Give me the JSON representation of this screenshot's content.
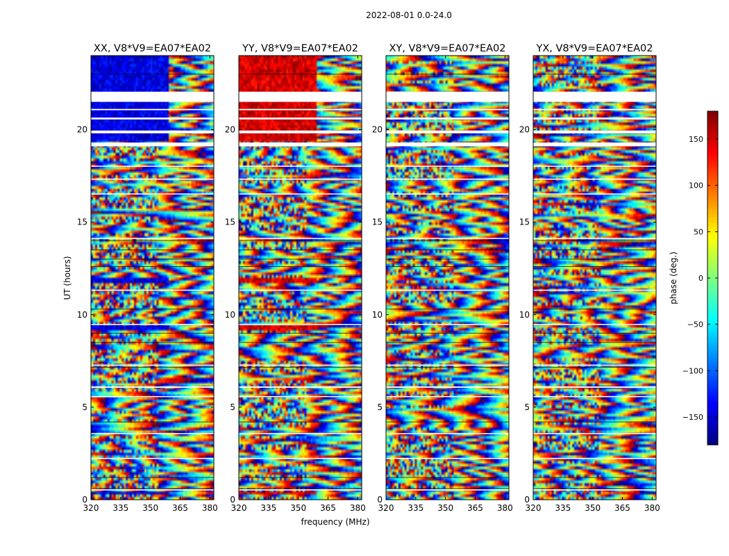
{
  "figure": {
    "title": "2022-08-01 0.0-24.0",
    "xlabel": "frequency (MHz)",
    "ylabel": "UT (hours)"
  },
  "colorbar": {
    "label": "phase (deg.)",
    "min": -180,
    "max": 180,
    "ticks": [
      -150,
      -100,
      -50,
      0,
      50,
      100,
      150
    ],
    "tick_labels": [
      "−150",
      "−100",
      "−50",
      "0",
      "50",
      "100",
      "150"
    ],
    "colormap": "jet",
    "colors": [
      "#00007f",
      "#0000ff",
      "#007fff",
      "#00ffff",
      "#7fff7f",
      "#ffff00",
      "#ff7f00",
      "#ff0000",
      "#7f0000"
    ]
  },
  "chart_data": [
    {
      "type": "heatmap",
      "title": "XX, V8*V9=EA07*EA02",
      "xlim": [
        320,
        382
      ],
      "ylim": [
        0,
        24
      ],
      "xticks": [
        320,
        335,
        350,
        365,
        380
      ],
      "yticks": [
        0,
        5,
        10,
        15,
        20
      ],
      "base_phase": -145,
      "coherent_below_mhz": 359,
      "coherent_ut_ranges": [
        [
          19.3,
          24.0
        ],
        [
          0.3,
          0.5
        ],
        [
          11.7,
          12.0
        ],
        [
          9.2,
          9.4
        ]
      ]
    },
    {
      "type": "heatmap",
      "title": "YY, V8*V9=EA07*EA02",
      "xlim": [
        320,
        382
      ],
      "ylim": [
        0,
        24
      ],
      "xticks": [
        320,
        335,
        350,
        365,
        380
      ],
      "yticks": [
        0,
        5,
        10,
        15,
        20
      ],
      "base_phase": 150,
      "coherent_below_mhz": 359,
      "coherent_ut_ranges": [
        [
          19.3,
          24.0
        ],
        [
          0.3,
          0.5
        ],
        [
          11.7,
          12.0
        ],
        [
          9.2,
          9.4
        ]
      ]
    },
    {
      "type": "heatmap",
      "title": "XY, V8*V9=EA07*EA02",
      "xlim": [
        320,
        382
      ],
      "ylim": [
        0,
        24
      ],
      "xticks": [
        320,
        335,
        350,
        365,
        380
      ],
      "yticks": [
        0,
        5,
        10,
        15,
        20
      ],
      "base_phase": null,
      "coherent_below_mhz": null,
      "coherent_ut_ranges": []
    },
    {
      "type": "heatmap",
      "title": "YX, V8*V9=EA07*EA02",
      "xlim": [
        320,
        382
      ],
      "ylim": [
        0,
        24
      ],
      "xticks": [
        320,
        335,
        350,
        365,
        380
      ],
      "yticks": [
        0,
        5,
        10,
        15,
        20
      ],
      "base_phase": null,
      "coherent_below_mhz": null,
      "coherent_ut_ranges": []
    }
  ],
  "flagged_ut_ranges": [
    [
      0.5,
      0.56
    ],
    [
      2.2,
      2.26
    ],
    [
      3.55,
      3.6
    ],
    [
      5.55,
      5.6
    ],
    [
      6.05,
      6.12
    ],
    [
      7.25,
      7.3
    ],
    [
      9.45,
      9.5
    ],
    [
      11.3,
      11.35
    ],
    [
      14.1,
      14.15
    ],
    [
      16.5,
      16.55
    ],
    [
      17.3,
      17.35
    ],
    [
      18.0,
      18.05
    ],
    [
      19.1,
      19.3
    ],
    [
      19.8,
      19.95
    ],
    [
      20.55,
      20.65
    ],
    [
      21.05,
      21.12
    ],
    [
      21.5,
      22.05
    ]
  ],
  "dark_ut_lines": [
    0.6,
    1.2,
    4.2,
    7.15,
    8.5,
    9.0,
    10.3,
    12.6,
    13.0,
    13.5,
    14.0,
    23.0
  ]
}
